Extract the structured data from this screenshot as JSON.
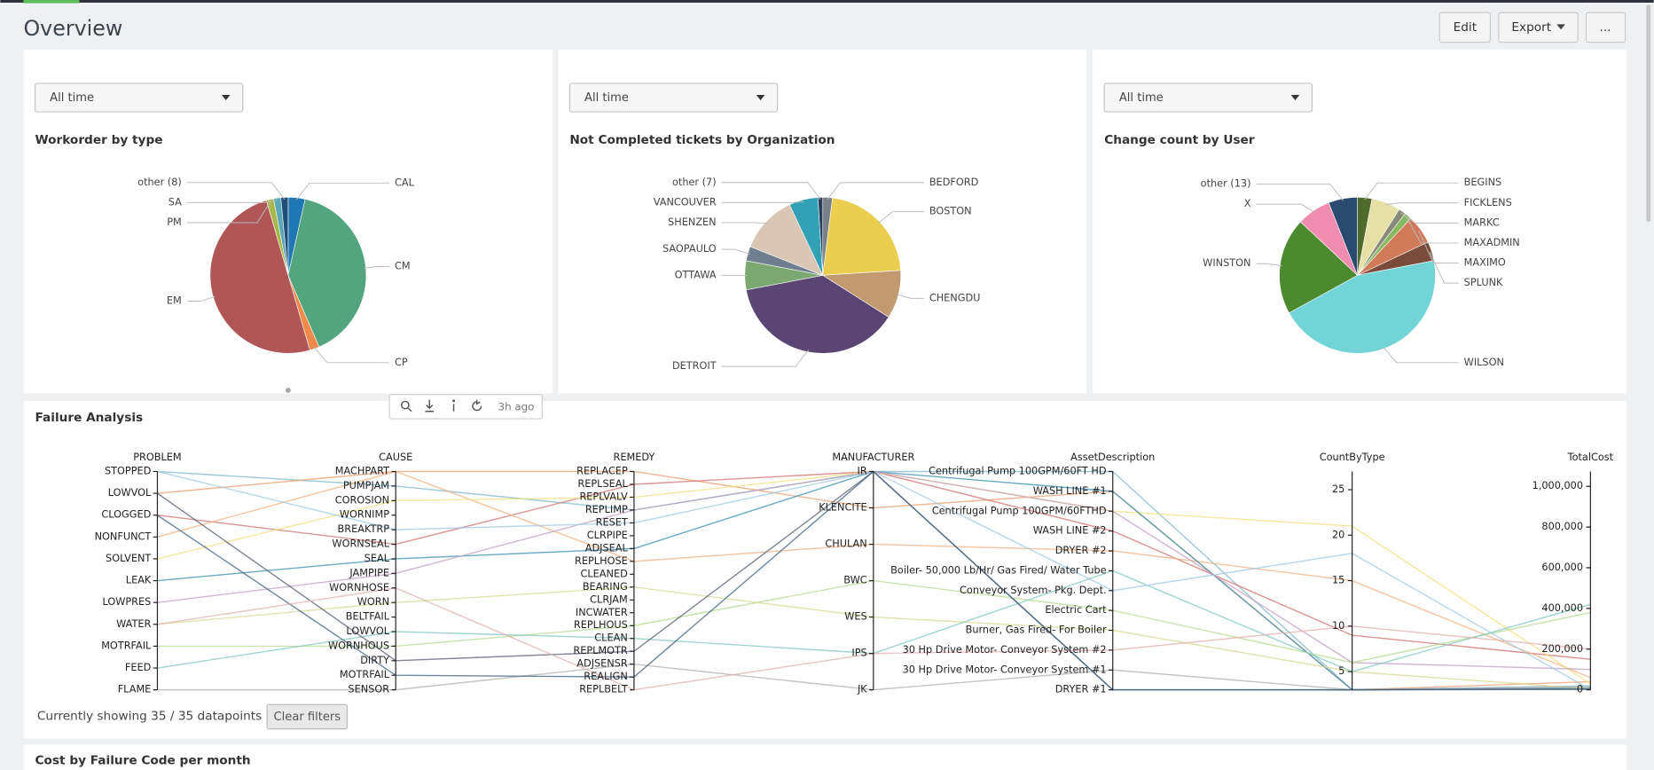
{
  "header": {
    "title": "Overview",
    "buttons": [
      "Edit",
      "Export",
      "..."
    ]
  },
  "filters": [
    "All time",
    "All time",
    "All time"
  ],
  "toolbar": {
    "updated": "3h ago"
  },
  "footer": {
    "status": "Currently showing 35 / 35 datapoints",
    "button": "Clear filters"
  },
  "next_panel_title": "Cost by Failure Code per month",
  "chart_data": [
    {
      "type": "pie",
      "title": "Workorder by type",
      "categories": [
        "CAL",
        "CM",
        "CP",
        "EM",
        "PM",
        "SA",
        "other (8)"
      ],
      "values": [
        3.5,
        40,
        2,
        50,
        1.5,
        1.5,
        1.5
      ],
      "colors": [
        "#1f77b4",
        "#52a57e",
        "#f08a4b",
        "#b05656",
        "#a8b84a",
        "#5aa7b8",
        "#1f4e79"
      ]
    },
    {
      "type": "pie",
      "title": "Not Completed tickets by Organization",
      "categories": [
        "BEDFORD",
        "BOSTON",
        "CHENGDU",
        "DETROIT",
        "OTTAWA",
        "SAOPAULO",
        "SHENZEN",
        "VANCOUVER",
        "other (7)"
      ],
      "values": [
        2,
        22,
        10,
        38,
        6,
        3,
        12,
        6,
        1
      ],
      "colors": [
        "#7a8088",
        "#ecce4f",
        "#c29a70",
        "#5a4575",
        "#7aa870",
        "#6f7f90",
        "#d9c6b4",
        "#32a0b5",
        "#2b3e5a"
      ]
    },
    {
      "type": "pie",
      "title": "Change count by User",
      "categories": [
        "BEGINS",
        "FICKLENS",
        "MARKC",
        "MAXADMIN",
        "MAXIMO",
        "SPLUNK",
        "WILSON",
        "WINSTON",
        "X",
        "other (13)"
      ],
      "values": [
        3,
        6,
        1.5,
        1.5,
        6,
        4,
        45,
        20,
        7,
        6
      ],
      "colors": [
        "#4e6b2b",
        "#e6dfa6",
        "#8a8a7a",
        "#88b860",
        "#d07a5a",
        "#7a4a3a",
        "#73d4d8",
        "#4c8a30",
        "#f08cb0",
        "#2b4a6f"
      ]
    },
    {
      "type": "parallel",
      "title": "Failure Analysis",
      "axes": [
        {
          "name": "PROBLEM",
          "categories": [
            "STOPPED",
            "LOWVOL",
            "CLOGGED",
            "NONFUNCT",
            "SOLVENT",
            "LEAK",
            "LOWPRES",
            "WATER",
            "MOTRFAIL",
            "FEED",
            "FLAME"
          ]
        },
        {
          "name": "CAUSE",
          "categories": [
            "MACHPART",
            "PUMPJAM",
            "COROSION",
            "WORNIMP",
            "BREAKTRP",
            "WORNSEAL",
            "SEAL",
            "JAMPIPE",
            "WORNHOSE",
            "WORN",
            "BELTFAIL",
            "LOWVOL",
            "WORNHOUS",
            "DIRTY",
            "MOTRFAIL",
            "SENSOR"
          ]
        },
        {
          "name": "REMEDY",
          "categories": [
            "REPLACEP",
            "REPLSEAL",
            "REPLVALV",
            "REPLIMP",
            "RESET",
            "CLRPIPE",
            "ADJSEAL",
            "REPLHOSE",
            "CLEANED",
            "BEARING",
            "CLRJAM",
            "INCWATER",
            "REPLHOUS",
            "CLEAN",
            "REPLMOTR",
            "ADJSENSR",
            "REALIGN",
            "REPLBELT"
          ]
        },
        {
          "name": "MANUFACTURER",
          "categories": [
            "IR",
            "KLENCITE",
            "CHULAN",
            "BWC",
            "WES",
            "IPS",
            "JK"
          ]
        },
        {
          "name": "AssetDescription",
          "categories": [
            "Centrifugal Pump 100GPM/60FT HD",
            "WASH LINE #1",
            "Centrifugal Pump 100GPM/60FTHD",
            "WASH LINE #2",
            "DRYER #2",
            "Boiler- 50,000 Lb/Hr/ Gas Fired/ Water Tube",
            "Conveyor System- Pkg. Dept.",
            "Electric Cart",
            "Burner, Gas Fired- For Boiler",
            "30 Hp Drive Motor- Conveyor System #2",
            "30 Hp Drive Motor- Conveyor System #1",
            "DRYER #1"
          ]
        },
        {
          "name": "CountByType",
          "ylim": [
            3,
            27
          ],
          "yticks": [
            5,
            10,
            15,
            20,
            25
          ]
        },
        {
          "name": "TotalCost",
          "ylim": [
            0,
            1073000
          ],
          "yticks": [
            0,
            {
              "value": 200000,
              "label": "200,000"
            },
            {
              "value": 400000,
              "label": "400,000"
            },
            {
              "value": 600000,
              "label": "600,000"
            },
            {
              "value": 800000,
              "label": "800,000"
            },
            {
              "value": 1000000,
              "label": "1,000,000"
            }
          ]
        }
      ],
      "records": [
        {
          "color": "#7fb8c8",
          "values": [
            "STOPPED",
            "PUMPJAM",
            "REPLIMP",
            "IR",
            "Centrifugal Pump 100GPM/60FT HD",
            3,
            20000
          ]
        },
        {
          "color": "#e8a070",
          "values": [
            "LOWVOL",
            "MACHPART",
            "REPLACEP",
            "KLENCITE",
            "WASH LINE #1",
            3,
            40000
          ]
        },
        {
          "color": "#d07070",
          "values": [
            "CLOGGED",
            "WORNSEAL",
            "REPLSEAL",
            "IR",
            "WASH LINE #2",
            9,
            150000
          ]
        },
        {
          "color": "#f0b080",
          "values": [
            "NONFUNCT",
            "MACHPART",
            "REPLHOSE",
            "CHULAN",
            "DRYER #2",
            15,
            60000
          ]
        },
        {
          "color": "#f0e080",
          "values": [
            "SOLVENT",
            "COROSION",
            "REPLVALV",
            "IR",
            "Centrifugal Pump 100GPM/60FTHD",
            21,
            30000
          ]
        },
        {
          "color": "#3a8fb0",
          "values": [
            "LEAK",
            "SEAL",
            "ADJSEAL",
            "IR",
            "WASH LINE #1",
            3,
            10000
          ]
        },
        {
          "color": "#c0a0c0",
          "values": [
            "LOWPRES",
            "JAMPIPE",
            "REPLIMP",
            "IR",
            "Centrifugal Pump 100GPM/60FTHD",
            6,
            100000
          ]
        },
        {
          "color": "#d8d890",
          "values": [
            "WATER",
            "WORN",
            "BEARING",
            "WES",
            "Burner, Gas Fired- For Boiler",
            5,
            5000
          ]
        },
        {
          "color": "#b8d890",
          "values": [
            "MOTRFAIL",
            "WORNHOUS",
            "REPLHOUS",
            "BWC",
            "Electric Cart",
            6,
            380000
          ]
        },
        {
          "color": "#80c8c0",
          "values": [
            "FEED",
            "LOWVOL",
            "CLEAN",
            "IPS",
            "Boiler- 50,000 Lb/Hr/ Gas Fired/ Water Tube",
            5,
            420000
          ]
        },
        {
          "color": "#b0b0b0",
          "values": [
            "FLAME",
            "SENSOR",
            "ADJSENSR",
            "JK",
            "30 Hp Drive Motor- Conveyor System #1",
            3,
            15000
          ]
        },
        {
          "color": "#a0c8e0",
          "values": [
            "STOPPED",
            "BREAKTRP",
            "RESET",
            "IR",
            "Conveyor System- Pkg. Dept.",
            18,
            1000
          ]
        },
        {
          "color": "#555e70",
          "values": [
            "LOWVOL",
            "DIRTY",
            "REPLMOTR",
            "IR",
            "DRYER #1",
            3,
            5000
          ]
        },
        {
          "color": "#406080",
          "values": [
            "CLOGGED",
            "MOTRFAIL",
            "REALIGN",
            "IR",
            "DRYER #1",
            3,
            2000
          ]
        },
        {
          "color": "#e0b0b0",
          "values": [
            "WATER",
            "WORNHOSE",
            "REPLBELT",
            "IPS",
            "30 Hp Drive Motor- Conveyor System #2",
            10,
            200000
          ]
        }
      ]
    }
  ]
}
